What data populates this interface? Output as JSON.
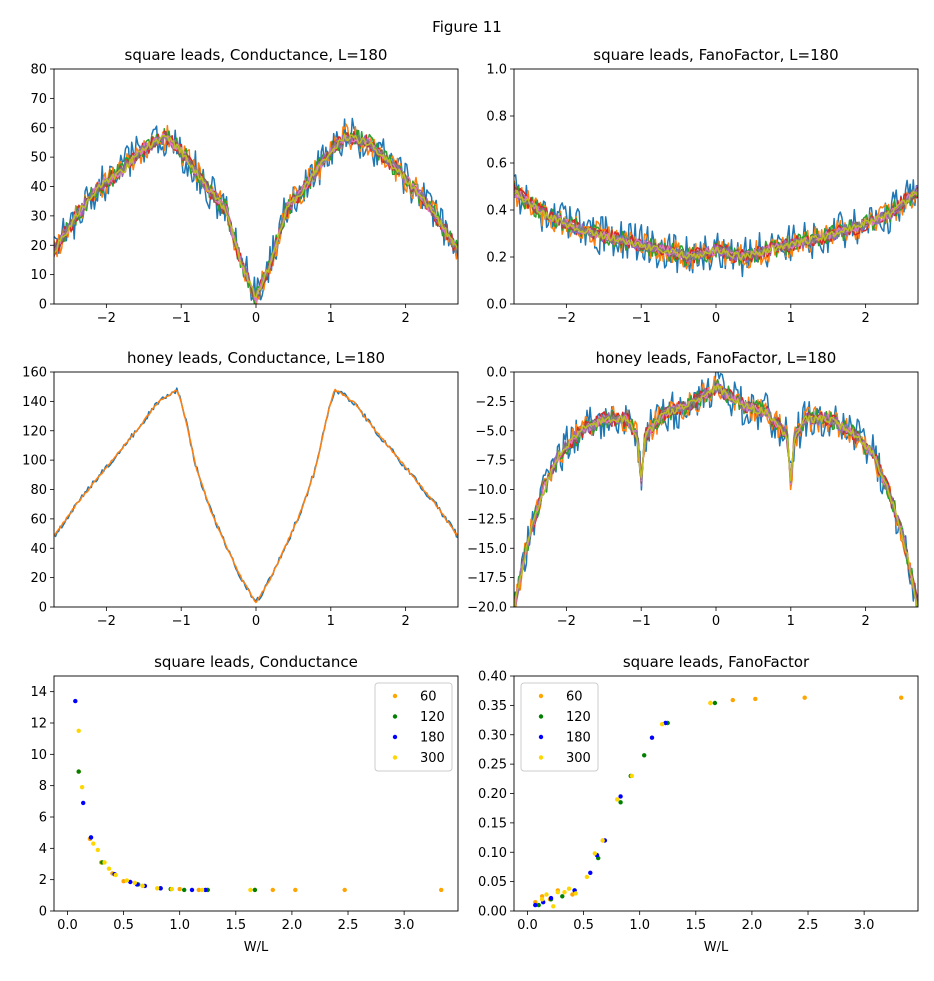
{
  "figure_title": "Figure 11",
  "colors": [
    "#1f77b4",
    "#ff7f0e",
    "#2ca02c",
    "#d62728",
    "#9467bd",
    "#8c564b",
    "#e377c2",
    "#7f7f7f",
    "#bcbd22"
  ],
  "legend_colors": [
    "#ffa500",
    "#008000",
    "#0000ff",
    "#ffd700"
  ],
  "chart_data": [
    {
      "id": "p1",
      "type": "line",
      "title": "square leads, Conductance, L=180",
      "xlabel": "",
      "ylabel": "",
      "xlim": [
        -2.7,
        2.7
      ],
      "ylim": [
        0,
        80
      ],
      "xticks": [
        -2,
        -1,
        0,
        1,
        2
      ],
      "yticks": [
        0,
        10,
        20,
        30,
        40,
        50,
        60,
        70,
        80
      ],
      "grid": false,
      "n_series": 9,
      "x_range": [
        -2.7,
        2.7
      ],
      "envelope_x": [
        -2.7,
        -2.4,
        -2.1,
        -1.8,
        -1.5,
        -1.2,
        -1.0,
        -0.8,
        -0.6,
        -0.4,
        -0.2,
        0.0,
        0.2,
        0.4,
        0.6,
        0.8,
        1.0,
        1.2,
        1.5,
        1.8,
        2.1,
        2.4,
        2.7
      ],
      "envelope_y": [
        18,
        30,
        40,
        45,
        53,
        57,
        52,
        45,
        38,
        32,
        14,
        2,
        14,
        32,
        38,
        45,
        52,
        57,
        55,
        48,
        40,
        30,
        18
      ]
    },
    {
      "id": "p2",
      "type": "line",
      "title": "square leads, FanoFactor, L=180",
      "xlabel": "",
      "ylabel": "",
      "xlim": [
        -2.7,
        2.7
      ],
      "ylim": [
        0.0,
        1.0
      ],
      "xticks": [
        -2,
        -1,
        0,
        1,
        2
      ],
      "yticks": [
        0.0,
        0.2,
        0.4,
        0.6,
        0.8,
        1.0
      ],
      "grid": false,
      "n_series": 9,
      "x_range": [
        -2.7,
        2.7
      ],
      "envelope_x": [
        -2.7,
        -2.3,
        -1.9,
        -1.5,
        -1.1,
        -0.7,
        -0.35,
        0.0,
        0.35,
        0.7,
        1.1,
        1.5,
        1.9,
        2.3,
        2.7
      ],
      "envelope_y": [
        0.48,
        0.38,
        0.33,
        0.29,
        0.26,
        0.23,
        0.2,
        0.23,
        0.2,
        0.23,
        0.26,
        0.29,
        0.33,
        0.38,
        0.48
      ]
    },
    {
      "id": "p3",
      "type": "line",
      "title": "honey leads, Conductance, L=180",
      "xlabel": "",
      "ylabel": "",
      "xlim": [
        -2.7,
        2.7
      ],
      "ylim": [
        0,
        160
      ],
      "xticks": [
        -2,
        -1,
        0,
        1,
        2
      ],
      "yticks": [
        0,
        20,
        40,
        60,
        80,
        100,
        120,
        140,
        160
      ],
      "grid": false,
      "n_series": 2,
      "x_range": [
        -2.7,
        2.7
      ],
      "envelope_x": [
        -2.7,
        -2.4,
        -2.0,
        -1.6,
        -1.3,
        -1.05,
        -0.95,
        -0.8,
        -0.6,
        -0.4,
        -0.2,
        0.0,
        0.2,
        0.4,
        0.6,
        0.8,
        0.95,
        1.05,
        1.3,
        1.6,
        2.0,
        2.4,
        2.7
      ],
      "envelope_y": [
        48,
        70,
        95,
        120,
        140,
        148,
        130,
        95,
        65,
        42,
        20,
        3,
        20,
        42,
        65,
        95,
        130,
        148,
        140,
        120,
        95,
        70,
        48
      ]
    },
    {
      "id": "p4",
      "type": "line",
      "title": "honey leads, FanoFactor, L=180",
      "xlabel": "",
      "ylabel": "",
      "xlim": [
        -2.7,
        2.7
      ],
      "ylim": [
        -20.0,
        0.0
      ],
      "xticks": [
        -2,
        -1,
        0,
        1,
        2
      ],
      "yticks": [
        -20.0,
        -17.5,
        -15.0,
        -12.5,
        -10.0,
        -7.5,
        -5.0,
        -2.5,
        0.0
      ],
      "grid": false,
      "n_series": 9,
      "x_range": [
        -2.7,
        2.7
      ],
      "envelope_x": [
        -2.7,
        -2.5,
        -2.3,
        -2.1,
        -1.8,
        -1.5,
        -1.2,
        -1.05,
        -1.0,
        -0.95,
        -0.7,
        -0.35,
        0.0,
        0.35,
        0.7,
        0.95,
        1.0,
        1.05,
        1.2,
        1.5,
        1.8,
        2.1,
        2.3,
        2.5,
        2.7
      ],
      "envelope_y": [
        -20,
        -14,
        -10,
        -7,
        -5,
        -4,
        -4,
        -5.5,
        -9.5,
        -5.5,
        -3.5,
        -2.8,
        -1.3,
        -2.8,
        -3.5,
        -5.5,
        -9.5,
        -5.5,
        -4,
        -4,
        -5,
        -7,
        -10,
        -14,
        -20
      ]
    },
    {
      "id": "p5",
      "type": "scatter",
      "title": "square leads, Conductance",
      "xlabel": "W/L",
      "ylabel": "",
      "xlim": [
        -0.12,
        3.48
      ],
      "ylim": [
        0,
        15
      ],
      "xticks": [
        0.0,
        0.5,
        1.0,
        1.5,
        2.0,
        2.5,
        3.0
      ],
      "yticks": [
        0,
        2,
        4,
        6,
        8,
        10,
        12,
        14
      ],
      "grid": false,
      "legend_position": "upper right",
      "series": [
        {
          "name": "60",
          "x": [
            0.1,
            0.2,
            0.3,
            0.4,
            0.5,
            0.67,
            0.83,
            1.0,
            1.17,
            1.25,
            1.67,
            1.83,
            2.03,
            2.47,
            3.33
          ],
          "y": [
            8.9,
            4.6,
            3.1,
            2.4,
            1.9,
            1.6,
            1.45,
            1.4,
            1.35,
            1.35,
            1.35,
            1.35,
            1.35,
            1.35,
            1.35
          ]
        },
        {
          "name": "120",
          "x": [
            0.1,
            0.21,
            0.31,
            0.42,
            0.63,
            0.83,
            0.92,
            1.04,
            1.25,
            1.67
          ],
          "y": [
            8.9,
            4.7,
            3.1,
            2.35,
            1.7,
            1.45,
            1.4,
            1.35,
            1.35,
            1.35
          ]
        },
        {
          "name": "180",
          "x": [
            0.07,
            0.14,
            0.21,
            0.42,
            0.56,
            0.62,
            0.69,
            0.83,
            1.11,
            1.23
          ],
          "y": [
            13.4,
            6.9,
            4.7,
            2.35,
            1.85,
            1.7,
            1.6,
            1.45,
            1.35,
            1.35
          ]
        },
        {
          "name": "300",
          "x": [
            0.1,
            0.13,
            0.23,
            0.27,
            0.33,
            0.37,
            0.43,
            0.53,
            0.6,
            0.67,
            0.8,
            0.93,
            1.2,
            1.63
          ],
          "y": [
            11.5,
            7.9,
            4.3,
            3.9,
            3.1,
            2.7,
            2.3,
            1.95,
            1.8,
            1.6,
            1.45,
            1.4,
            1.35,
            1.35
          ]
        }
      ]
    },
    {
      "id": "p6",
      "type": "scatter",
      "title": "square leads, FanoFactor",
      "xlabel": "W/L",
      "ylabel": "",
      "xlim": [
        -0.12,
        3.48
      ],
      "ylim": [
        0.0,
        0.4
      ],
      "xticks": [
        0.0,
        0.5,
        1.0,
        1.5,
        2.0,
        2.5,
        3.0
      ],
      "yticks": [
        0.0,
        0.05,
        0.1,
        0.15,
        0.2,
        0.25,
        0.3,
        0.35,
        0.4
      ],
      "grid": false,
      "legend_position": "upper left",
      "series": [
        {
          "name": "60",
          "x": [
            0.07,
            0.13,
            0.2,
            0.27,
            0.4,
            0.67,
            1.63,
            1.83,
            2.03,
            2.47,
            3.33
          ],
          "y": [
            0.015,
            0.025,
            0.02,
            0.035,
            0.028,
            0.12,
            0.354,
            0.359,
            0.361,
            0.363,
            0.363
          ]
        },
        {
          "name": "120",
          "x": [
            0.1,
            0.21,
            0.31,
            0.42,
            0.63,
            0.83,
            0.92,
            1.04,
            1.25,
            1.67
          ],
          "y": [
            0.01,
            0.02,
            0.025,
            0.035,
            0.09,
            0.185,
            0.23,
            0.265,
            0.32,
            0.354
          ]
        },
        {
          "name": "180",
          "x": [
            0.07,
            0.14,
            0.21,
            0.42,
            0.56,
            0.62,
            0.69,
            0.83,
            1.11,
            1.23
          ],
          "y": [
            0.01,
            0.015,
            0.022,
            0.035,
            0.065,
            0.095,
            0.12,
            0.195,
            0.295,
            0.32
          ]
        },
        {
          "name": "300",
          "x": [
            0.13,
            0.17,
            0.23,
            0.27,
            0.33,
            0.37,
            0.43,
            0.53,
            0.6,
            0.67,
            0.8,
            0.93,
            1.2,
            1.63
          ],
          "y": [
            0.02,
            0.028,
            0.008,
            0.032,
            0.032,
            0.038,
            0.03,
            0.058,
            0.098,
            0.12,
            0.19,
            0.23,
            0.318,
            0.354
          ]
        }
      ]
    }
  ]
}
